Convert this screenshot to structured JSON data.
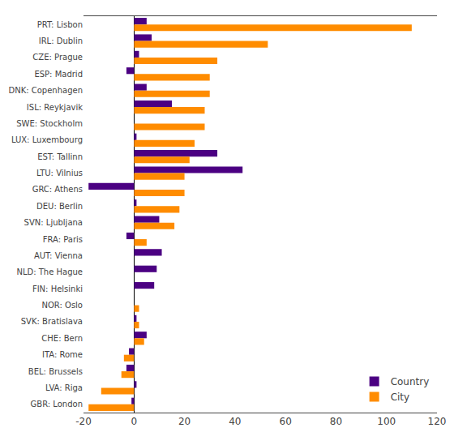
{
  "chart_data": {
    "type": "bar",
    "orientation": "horizontal",
    "categories": [
      "PRT: Lisbon",
      "IRL: Dublin",
      "CZE: Prague",
      "ESP: Madrid",
      "DNK: Copenhagen",
      "ISL: Reykjavik",
      "SWE: Stockholm",
      "LUX: Luxembourg",
      "EST: Tallinn",
      "LTU: Vilnius",
      "GRC: Athens",
      "DEU: Berlin",
      "SVN: Ljubljana",
      "FRA: Paris",
      "AUT: Vienna",
      "NLD: The Hague",
      "FIN: Helsinki",
      "NOR: Oslo",
      "SVK: Bratislava",
      "CHE: Bern",
      "ITA: Rome",
      "BEL: Brussels",
      "LVA: Riga",
      "GBR: London"
    ],
    "series": [
      {
        "name": "Country",
        "color": "#4B0082",
        "values": [
          5,
          7,
          2,
          -3,
          5,
          15,
          0,
          1,
          33,
          43,
          -18,
          1,
          10,
          -3,
          11,
          9,
          8,
          0,
          1,
          5,
          -2,
          -3,
          1,
          -1
        ]
      },
      {
        "name": "City",
        "color": "#FF8C00",
        "values": [
          110,
          53,
          33,
          30,
          30,
          28,
          28,
          24,
          22,
          20,
          20,
          18,
          16,
          5,
          0,
          0,
          0,
          2,
          2,
          4,
          -4,
          -5,
          -13,
          -18
        ]
      }
    ],
    "xlim": [
      -20,
      120
    ],
    "xticks": [
      -20,
      0,
      20,
      40,
      60,
      80,
      100,
      120
    ],
    "grid": false,
    "legend": "lower right"
  }
}
